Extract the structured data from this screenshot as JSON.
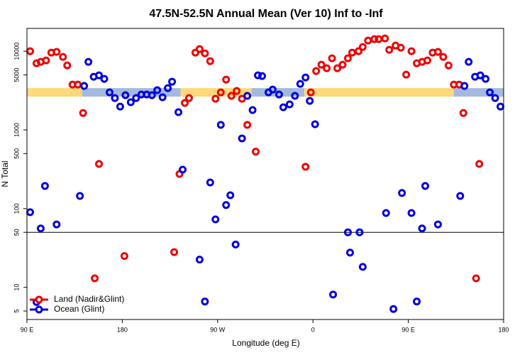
{
  "chart_data": {
    "type": "scatter",
    "title": "47.5N-52.5N Annual Mean (Ver 10)   Inf to -Inf",
    "x_label": "Longitude (deg E)",
    "y_label": "N Total",
    "log_y": true,
    "xlim": [
      90,
      540
    ],
    "ylim": [
      3.9,
      19500
    ],
    "xticks": [
      {
        "value": 90,
        "label": "90 E"
      },
      180,
      {
        "value": 270,
        "label": "90 W"
      },
      {
        "value": 360,
        "label": "0"
      },
      {
        "value": 450,
        "label": "90 E"
      },
      {
        "value": 540,
        "label": "180"
      }
    ],
    "yticks": [
      5,
      10,
      50,
      100,
      500,
      1000,
      5000,
      10000
    ],
    "reference_line": 50,
    "band": {
      "value": 3000,
      "segments": [
        {
          "from": 90,
          "to": 142,
          "color": "#ffd97a"
        },
        {
          "from": 142,
          "to": 235,
          "color": "#a3b9e0"
        },
        {
          "from": 235,
          "to": 302,
          "color": "#ffd97a"
        },
        {
          "from": 302,
          "to": 352,
          "color": "#a3b9e0"
        },
        {
          "from": 352,
          "to": 493,
          "color": "#ffd97a"
        },
        {
          "from": 493,
          "to": 540,
          "color": "#a3b9e0"
        }
      ]
    },
    "legend": "bottom-left",
    "series": [
      {
        "name": "Land (Nadir&Glint)",
        "color": "#ee0000",
        "x": [
          93,
          99,
          103,
          108,
          113,
          118,
          124,
          128,
          133,
          138,
          143,
          154,
          158,
          182,
          229,
          234,
          239,
          243,
          249,
          253,
          258,
          263,
          268,
          273,
          278,
          283,
          288,
          293,
          298,
          306,
          353,
          358,
          363,
          368,
          373,
          378,
          383,
          388,
          393,
          397,
          403,
          407,
          412,
          418,
          422,
          428,
          432,
          438,
          443,
          448,
          453,
          458,
          463,
          468,
          473,
          478,
          483,
          488,
          493,
          498,
          502,
          514,
          517
        ],
        "values": [
          10000,
          7030,
          7320,
          7630,
          9590,
          9800,
          8470,
          6600,
          3770,
          3770,
          1640,
          13,
          370,
          25,
          28,
          276,
          2200,
          2540,
          9590,
          10640,
          9400,
          7480,
          2490,
          3000,
          4360,
          2710,
          3130,
          2490,
          1160,
          530,
          340,
          3000,
          5600,
          6740,
          6080,
          8130,
          6080,
          6740,
          8130,
          9590,
          10000,
          11330,
          13650,
          14230,
          14230,
          14530,
          10420,
          11800,
          11100,
          5040,
          10000,
          7030,
          7320,
          7630,
          9590,
          9800,
          8470,
          6600,
          3770,
          3770,
          1640,
          13,
          370
        ]
      },
      {
        "name": "Ocean (Glint)",
        "color": "#0000dd",
        "x": [
          93,
          99,
          103,
          107,
          118,
          140,
          144,
          148,
          153,
          158,
          163,
          168,
          173,
          178,
          183,
          188,
          193,
          198,
          203,
          208,
          213,
          218,
          223,
          227,
          233,
          237,
          253,
          258,
          263,
          268,
          273,
          278,
          282,
          287,
          293,
          298,
          303,
          308,
          312,
          318,
          322,
          328,
          332,
          338,
          343,
          348,
          353,
          357,
          362,
          379,
          393,
          395,
          404,
          407,
          429,
          436,
          444,
          453,
          458,
          463,
          466,
          478,
          499,
          503,
          507,
          513,
          518,
          523,
          527,
          532,
          537
        ],
        "values": [
          90,
          6.5,
          56,
          194,
          63,
          145,
          3620,
          7320,
          4740,
          4940,
          4450,
          3000,
          2540,
          1980,
          2760,
          2250,
          2540,
          2820,
          2820,
          2760,
          3200,
          2600,
          3400,
          4100,
          1680,
          313,
          22.5,
          6.6,
          215,
          73,
          1160,
          111,
          148,
          35,
          780,
          2710,
          1790,
          4940,
          4840,
          3000,
          3260,
          2820,
          1940,
          2110,
          2710,
          3850,
          4640,
          2340,
          1180,
          8.1,
          50,
          27.6,
          50,
          18.2,
          88,
          5.3,
          158,
          88,
          6.6,
          56,
          194,
          63,
          145,
          3620,
          7320,
          4740,
          4940,
          4450,
          3000,
          2540,
          1980
        ]
      }
    ]
  }
}
